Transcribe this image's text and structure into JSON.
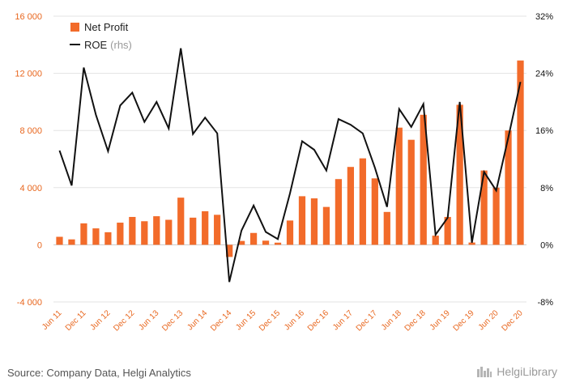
{
  "chart_data": {
    "type": "bar+line",
    "categories": [
      "Jun 11",
      "Sep 11",
      "Dec 11",
      "Mar 12",
      "Jun 12",
      "Sep 12",
      "Dec 12",
      "Mar 13",
      "Jun 13",
      "Sep 13",
      "Dec 13",
      "Mar 14",
      "Jun 14",
      "Sep 14",
      "Dec 14",
      "Mar 15",
      "Jun 15",
      "Sep 15",
      "Dec 15",
      "Mar 16",
      "Jun 16",
      "Sep 16",
      "Dec 16",
      "Mar 17",
      "Jun 17",
      "Sep 17",
      "Dec 17",
      "Mar 18",
      "Jun 18",
      "Sep 18",
      "Dec 18",
      "Mar 19",
      "Jun 19",
      "Sep 19",
      "Dec 19",
      "Mar 20",
      "Jun 20",
      "Sep 20",
      "Dec 20"
    ],
    "x_tick_labels": [
      "Jun 11",
      "Dec 11",
      "Jun 12",
      "Dec 12",
      "Jun 13",
      "Dec 13",
      "Jun 14",
      "Dec 14",
      "Jun 15",
      "Dec 15",
      "Jun 16",
      "Dec 16",
      "Jun 17",
      "Dec 17",
      "Jun 18",
      "Dec 18",
      "Jun 19",
      "Dec 19",
      "Jun 20",
      "Dec 20"
    ],
    "series": [
      {
        "name": "Net Profit",
        "kind": "bar",
        "axis": "left",
        "color": "#f26b2a",
        "values": [
          560,
          380,
          1500,
          1150,
          880,
          1550,
          1950,
          1650,
          2000,
          1750,
          3300,
          1900,
          2350,
          2100,
          -850,
          270,
          830,
          290,
          150,
          1700,
          3400,
          3250,
          2650,
          4600,
          5450,
          6050,
          4650,
          2300,
          8200,
          7350,
          9100,
          640,
          1950,
          9800,
          160,
          5200,
          4000,
          8000,
          12900
        ]
      },
      {
        "name": "ROE",
        "kind": "line",
        "axis": "right",
        "color": "#111111",
        "values": [
          13.2,
          8.3,
          24.8,
          18.2,
          13.1,
          19.5,
          21.3,
          17.2,
          20.0,
          16.3,
          27.5,
          15.5,
          17.8,
          15.6,
          -5.2,
          2.0,
          5.5,
          1.8,
          0.8,
          7.2,
          14.5,
          13.3,
          10.4,
          17.6,
          16.8,
          15.6,
          10.8,
          5.3,
          19.0,
          16.5,
          19.7,
          1.4,
          3.8,
          20.0,
          0.3,
          10.2,
          7.6,
          15.0,
          22.8
        ]
      }
    ],
    "left_axis": {
      "ticks": [
        "16 000",
        "12 000",
        "8 000",
        "4 000",
        "0",
        "-4 000"
      ],
      "ylim": [
        -4000,
        16000
      ]
    },
    "right_axis": {
      "ticks": [
        "32%",
        "24%",
        "16%",
        "8%",
        "0%",
        "-8%"
      ],
      "ylim": [
        -8,
        32
      ]
    },
    "legend": {
      "placement": "top-left",
      "items": [
        {
          "label": "Net Profit",
          "color": "#f26b2a",
          "marker": "square"
        },
        {
          "label": "ROE",
          "suffix": "(rhs)",
          "color": "#111111",
          "marker": "line"
        }
      ]
    },
    "grid": true
  },
  "footer": {
    "source": "Source: Company Data, Helgi Analytics",
    "brand": "HelgiLibrary"
  }
}
